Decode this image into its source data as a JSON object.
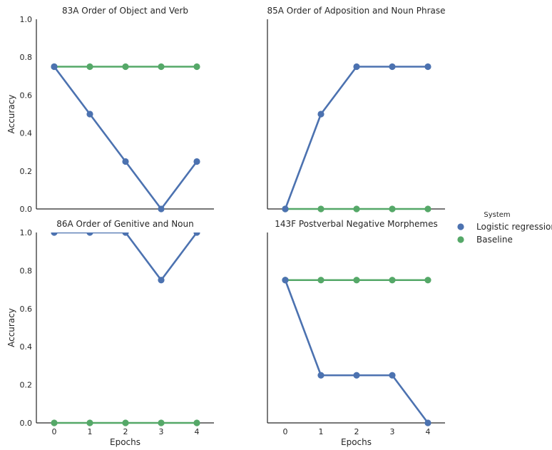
{
  "chart_data": {
    "type": "line",
    "layout": "facet-grid-2x2",
    "shared_ylabel": "Accuracy",
    "shared_xlabel": "Epochs",
    "x": [
      0,
      1,
      2,
      3,
      4
    ],
    "xticks": [
      "0",
      "1",
      "2",
      "3",
      "4"
    ],
    "ylim": [
      0,
      1.0
    ],
    "yticks": [
      "0.0",
      "0.2",
      "0.4",
      "0.6",
      "0.8",
      "1.0"
    ],
    "grid": false,
    "legend": {
      "title": "System",
      "placement": "right",
      "entries": [
        {
          "name": "Logistic regression",
          "color": "#4c72b0"
        },
        {
          "name": "Baseline",
          "color": "#55a868"
        }
      ]
    },
    "panels": [
      {
        "title": "83A Order of Object and Verb",
        "series": [
          {
            "name": "Logistic regression",
            "color": "#4c72b0",
            "values": [
              0.75,
              0.5,
              0.25,
              0.0,
              0.25
            ]
          },
          {
            "name": "Baseline",
            "color": "#55a868",
            "values": [
              0.75,
              0.75,
              0.75,
              0.75,
              0.75
            ]
          }
        ]
      },
      {
        "title": "85A Order of Adposition and Noun Phrase",
        "series": [
          {
            "name": "Logistic regression",
            "color": "#4c72b0",
            "values": [
              0.0,
              0.5,
              0.75,
              0.75,
              0.75
            ]
          },
          {
            "name": "Baseline",
            "color": "#55a868",
            "values": [
              0.0,
              0.0,
              0.0,
              0.0,
              0.0
            ]
          }
        ]
      },
      {
        "title": "86A Order of Genitive and Noun",
        "series": [
          {
            "name": "Logistic regression",
            "color": "#4c72b0",
            "values": [
              1.0,
              1.0,
              1.0,
              0.75,
              1.0
            ]
          },
          {
            "name": "Baseline",
            "color": "#55a868",
            "values": [
              0.0,
              0.0,
              0.0,
              0.0,
              0.0
            ]
          }
        ]
      },
      {
        "title": "143F Postverbal Negative Morphemes",
        "series": [
          {
            "name": "Logistic regression",
            "color": "#4c72b0",
            "values": [
              0.75,
              0.25,
              0.25,
              0.25,
              0.0
            ]
          },
          {
            "name": "Baseline",
            "color": "#55a868",
            "values": [
              0.75,
              0.75,
              0.75,
              0.75,
              0.75
            ]
          }
        ]
      }
    ]
  }
}
